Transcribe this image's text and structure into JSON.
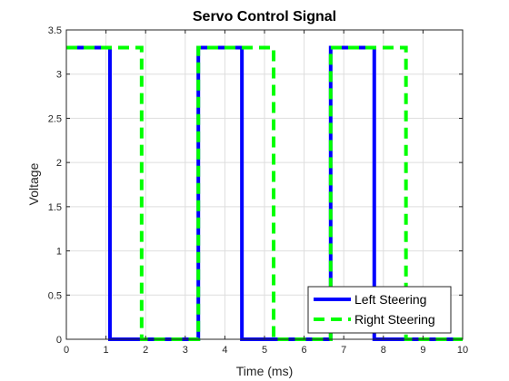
{
  "chart_data": {
    "type": "line",
    "title": "Servo Control Signal",
    "xlabel": "Time (ms)",
    "ylabel": "Voltage",
    "xlim": [
      0,
      10
    ],
    "ylim": [
      0,
      3.5
    ],
    "xticks": [
      0,
      1,
      2,
      3,
      4,
      5,
      6,
      7,
      8,
      9,
      10
    ],
    "yticks": [
      0,
      0.5,
      1,
      1.5,
      2,
      2.5,
      3,
      3.5
    ],
    "xtick_labels": [
      "0",
      "1",
      "2",
      "3",
      "4",
      "5",
      "6",
      "7",
      "8",
      "9",
      "10"
    ],
    "ytick_labels": [
      "0",
      "0.5",
      "1",
      "1.5",
      "2",
      "2.5",
      "3",
      "3.5"
    ],
    "grid": true,
    "legend_position": "bottom-right",
    "series": [
      {
        "name": "Left Steering",
        "color": "#0000ff",
        "style": "solid",
        "x": [
          0,
          1.1,
          1.1,
          3.33,
          3.33,
          4.43,
          4.43,
          6.67,
          6.67,
          7.77,
          7.77,
          10
        ],
        "y": [
          3.3,
          3.3,
          0,
          0,
          3.3,
          3.3,
          0,
          0,
          3.3,
          3.3,
          0,
          0
        ]
      },
      {
        "name": "Right Steering",
        "color": "#00ff00",
        "style": "dashed",
        "x": [
          0,
          1.9,
          1.9,
          3.33,
          3.33,
          5.23,
          5.23,
          6.67,
          6.67,
          8.57,
          8.57,
          10
        ],
        "y": [
          3.3,
          3.3,
          0,
          0,
          3.3,
          3.3,
          0,
          0,
          3.3,
          3.3,
          0,
          0
        ]
      }
    ]
  }
}
